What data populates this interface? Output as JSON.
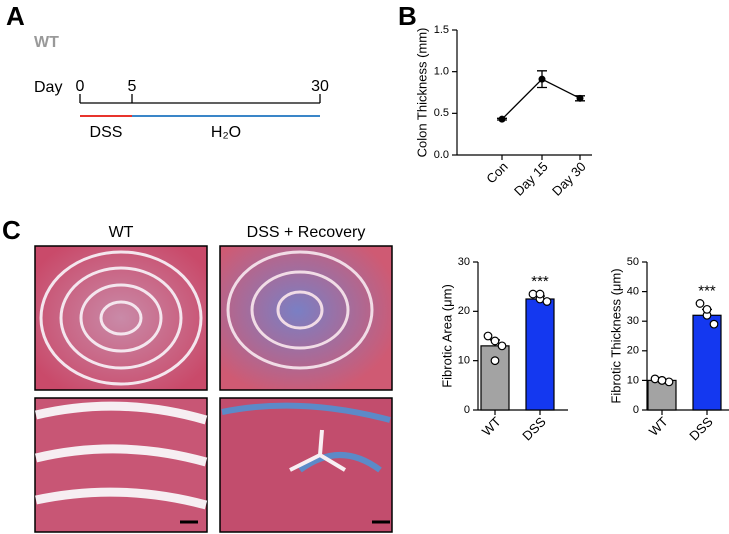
{
  "figure": {
    "panel_labels": [
      "A",
      "B",
      "C"
    ],
    "timeline": {
      "strain": "WT",
      "day_label": "Day",
      "days": [
        0,
        5,
        30
      ],
      "phases": [
        "DSS",
        "H₂O"
      ]
    },
    "image_titles": [
      "WT",
      "DSS + Recovery"
    ]
  },
  "chart_data": [
    {
      "type": "line",
      "ylabel": "Colon Thickness (mm)",
      "categories": [
        "Con",
        "Day 15",
        "Day 30"
      ],
      "values": [
        0.43,
        0.91,
        0.68
      ],
      "errors": [
        0.01,
        0.1,
        0.03
      ],
      "color": "#000000",
      "ylim": [
        0,
        1.5
      ],
      "yticks": [
        {
          "value": 0,
          "label": "0.0"
        },
        {
          "value": 0.5,
          "label": "0.5"
        },
        {
          "value": 1,
          "label": "1.0"
        },
        {
          "value": 1.5,
          "label": "1.5"
        }
      ]
    },
    {
      "type": "bar",
      "ylabel": "Fibrotic Area (μm)",
      "categories": [
        "WT",
        "DSS"
      ],
      "values": [
        13,
        22.5
      ],
      "errors": [
        1.2,
        0.6
      ],
      "colors": [
        "#a3a3a3",
        "#1438f0"
      ],
      "points": [
        [
          15,
          14,
          13,
          10
        ],
        [
          23.5,
          22.5,
          22,
          23.5
        ]
      ],
      "significance": "***",
      "ylim": [
        0,
        30
      ],
      "yticks": [
        0,
        10,
        20,
        30
      ]
    },
    {
      "type": "bar",
      "ylabel": "Fibrotic Thickness (μm)",
      "categories": [
        "WT",
        "DSS"
      ],
      "values": [
        10,
        32
      ],
      "errors": [
        0.3,
        2
      ],
      "colors": [
        "#a3a3a3",
        "#1438f0"
      ],
      "points": [
        [
          10.5,
          10,
          9.5,
          10
        ],
        [
          36,
          32,
          29,
          34
        ]
      ],
      "significance": "***",
      "ylim": [
        0,
        50
      ],
      "yticks": [
        0,
        10,
        20,
        30,
        40,
        50
      ]
    }
  ]
}
